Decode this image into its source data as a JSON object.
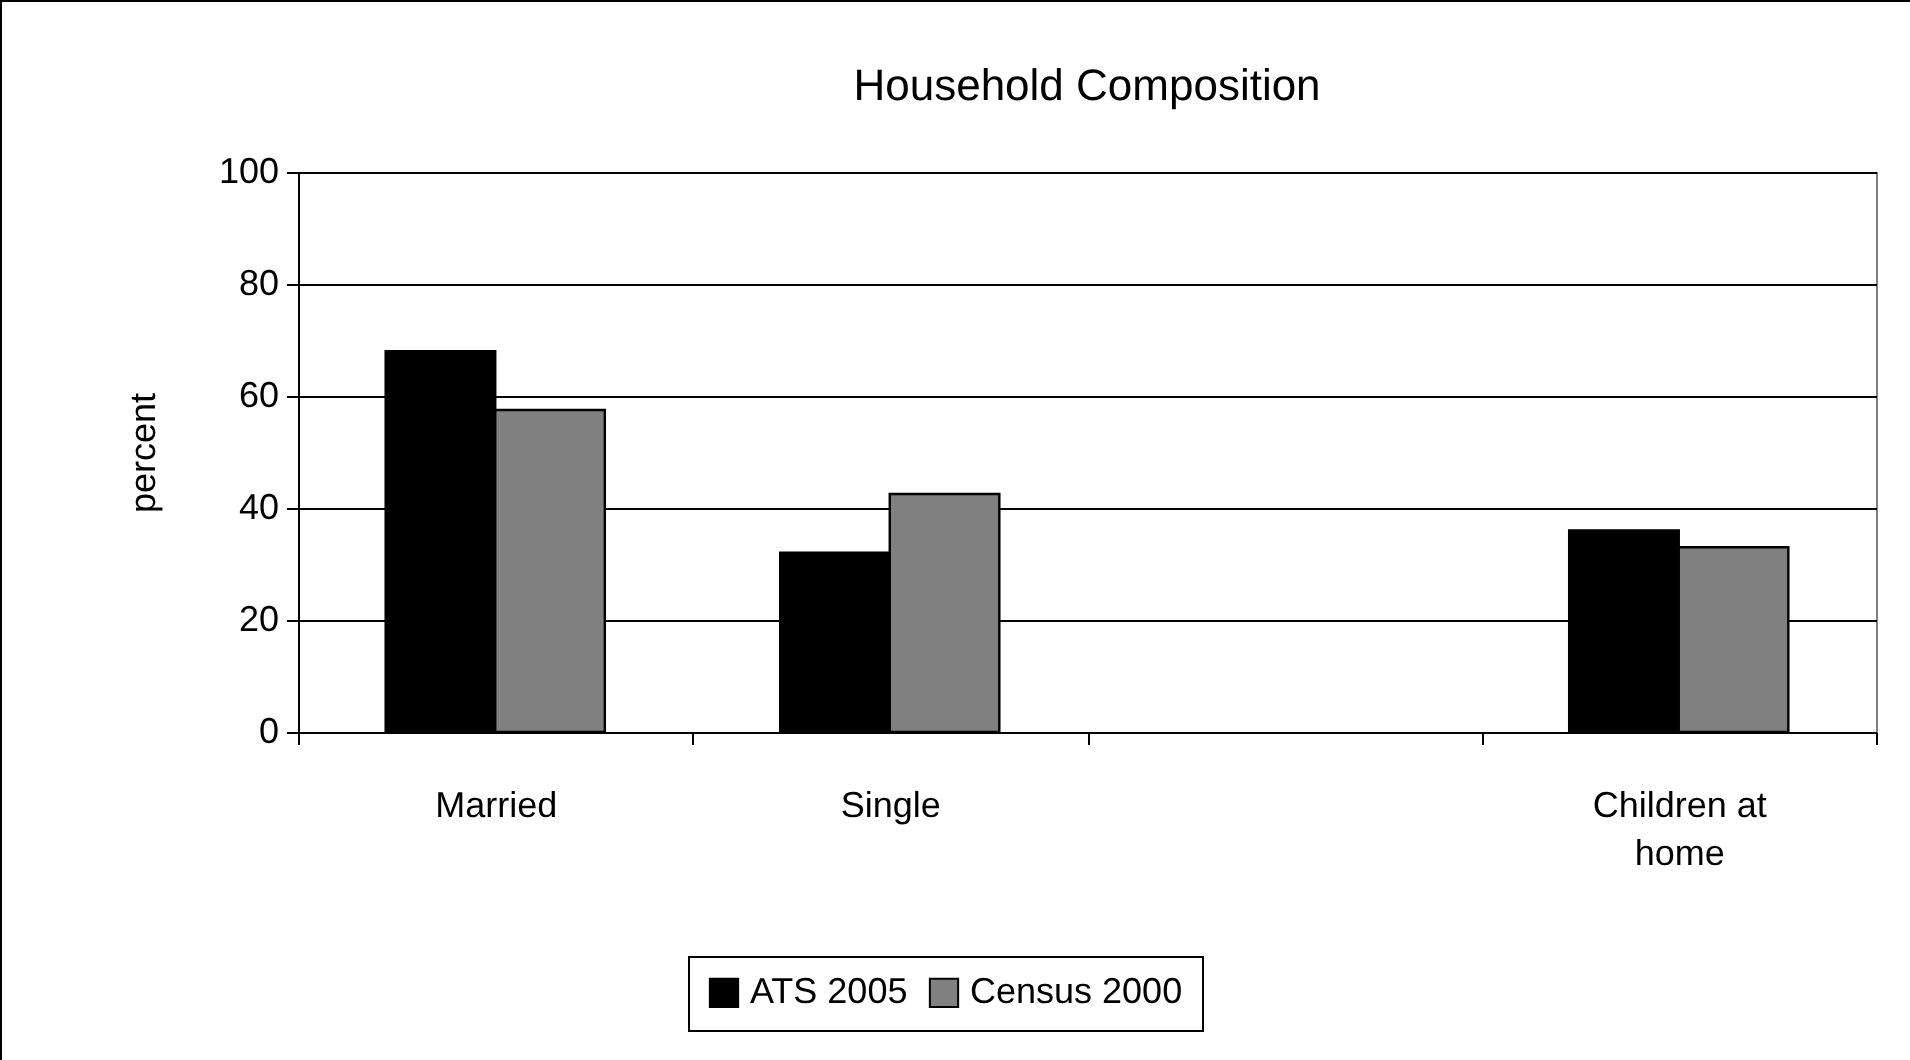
{
  "chart_data": {
    "type": "bar",
    "title": "Household Composition",
    "ylabel": "percent",
    "categories": [
      "Married",
      "Single",
      null,
      "Children at home"
    ],
    "series": [
      {
        "name": "ATS 2005",
        "color": "#000000",
        "values": [
          68,
          32,
          null,
          36
        ]
      },
      {
        "name": "Census 2000",
        "color": "#808080",
        "values": [
          57.5,
          42.5,
          null,
          33
        ]
      }
    ],
    "ylim": [
      0,
      100
    ],
    "yticks": [
      0,
      20,
      40,
      60,
      80,
      100
    ],
    "grid": "y",
    "legend": "bottom"
  }
}
